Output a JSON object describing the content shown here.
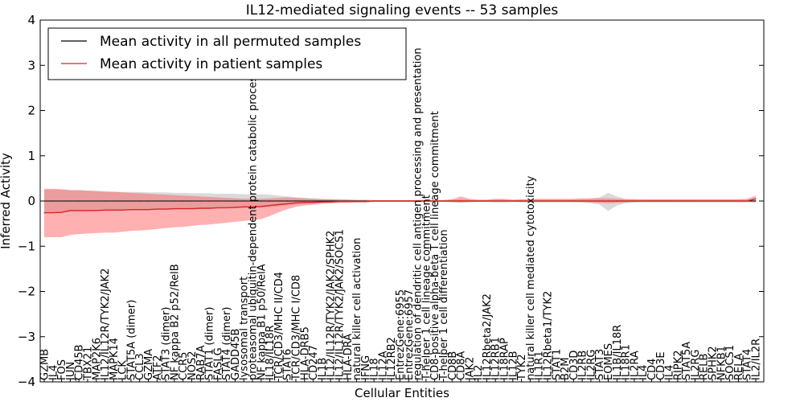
{
  "chart_data": {
    "type": "line",
    "title": "IL12-mediated signaling events -- 53 samples",
    "xlabel": "Cellular Entities",
    "ylabel": "Inferred Activity",
    "ylim": [
      -4,
      4
    ],
    "yticks": [
      -4,
      -3,
      -2,
      -1,
      0,
      1,
      2,
      3,
      4
    ],
    "categories": [
      "GZMB",
      "IL4",
      "FOS",
      "JUN",
      "CD45B",
      "TBX21",
      "MAP2K6",
      "IL12/IL12R/TYK2/JAK2",
      "MAPK14",
      "LCK",
      "STAT5A (dimer)",
      "CCL3",
      "GZMA",
      "ATF2",
      "STAT3 (dimer)",
      "NF kappa B2 p52/RelB",
      "CCR5",
      "NOS2",
      "RAB7A",
      "STAT1 (dimer)",
      "FASLG",
      "STAT4 (dimer)",
      "GADD45B",
      "lysosomal transport",
      "proteasomal ubiquitin-dependent protein catabolic process",
      "NF kappa B1 p50/RelA",
      "IL18/IL18R",
      "TCR/CD3/MHC II/CD4",
      "STAT6",
      "TCR/CD3/MHC I/CD8",
      "HLA-DRB5",
      "CD247",
      "IL1B",
      "IL12/IL12R/TYK2/JAK2/SPHK2",
      "IL12/IL12R/TYK2/JAK2/SOCS1",
      "HLA-DRA",
      "natural killer cell activation",
      "IFNG",
      "IL18",
      "IL12A",
      "IL12RB2",
      "EntrezGene:6955",
      "EntrezGene:6957",
      "regulation of dendritic cell antigen processing and presentation",
      "T-helper 1 cell lineage commitment",
      "CD8-positive alpha-beta T cell lineage commitment",
      "T-helper 1 cell differentiation",
      "CD8B",
      "CD8A",
      "JAK2",
      "IL2",
      "IL12Rbeta2/JAK2",
      "IL12RB1",
      "IL18RAP",
      "IL12B",
      "TYK2",
      "natural killer cell mediated cytotoxicity",
      "IL1R1",
      "IL12Rbeta1/TYK2",
      "STAT1",
      "B2M",
      "CD3D",
      "IL2RB",
      "IL2RG",
      "STAT3",
      "EOMES",
      "IL1B/IL18R",
      "IL18R1",
      "IL2RA",
      "IL4",
      "CD4",
      "CD3E",
      "IL4",
      "RIPK2",
      "STAT5A",
      "IL2RG",
      "RELB",
      "SPHK2",
      "NFKB1",
      "SOCS1",
      "RELA",
      "STAT4",
      "IL2/IL2R"
    ],
    "series": [
      {
        "name": "Mean activity in all permuted samples",
        "color": "#000000",
        "values": [
          0.0,
          0.0,
          0.0,
          0.0,
          0.0,
          0.0,
          0.0,
          0.0,
          0.0,
          0.0,
          0.0,
          0.0,
          0.0,
          0.0,
          0.0,
          0.0,
          0.0,
          0.0,
          0.0,
          0.0,
          0.0,
          0.0,
          0.0,
          0.0,
          0.0,
          0.0,
          0.0,
          0.0,
          0.0,
          0.0,
          0.0,
          0.0,
          0.0,
          0.0,
          0.0,
          0.0,
          0.0,
          0.0,
          0.0,
          0.0,
          0.0,
          0.0,
          0.0,
          0.0,
          0.0,
          0.0,
          0.0,
          0.0,
          0.0,
          0.0,
          0.0,
          0.0,
          0.0,
          0.0,
          0.0,
          0.0,
          0.0,
          0.0,
          0.0,
          0.0,
          0.0,
          0.0,
          0.0,
          0.0,
          0.0,
          0.0,
          0.0,
          0.0,
          0.0,
          0.0,
          0.0,
          0.0,
          0.0,
          0.0,
          0.0,
          0.0,
          0.0,
          0.0,
          0.0,
          0.0,
          0.0,
          0.0,
          0.0
        ],
        "lower": [
          -0.25,
          -0.25,
          -0.25,
          -0.24,
          -0.24,
          -0.23,
          -0.22,
          -0.21,
          -0.21,
          -0.2,
          -0.2,
          -0.2,
          -0.19,
          -0.19,
          -0.19,
          -0.18,
          -0.18,
          -0.17,
          -0.17,
          -0.17,
          -0.16,
          -0.16,
          -0.16,
          -0.15,
          -0.15,
          -0.15,
          -0.14,
          -0.12,
          -0.1,
          -0.08,
          -0.07,
          -0.06,
          -0.05,
          -0.04,
          -0.04,
          -0.03,
          -0.03,
          -0.03,
          -0.02,
          -0.02,
          -0.02,
          -0.02,
          -0.02,
          -0.02,
          -0.02,
          -0.02,
          -0.02,
          -0.03,
          -0.04,
          -0.03,
          -0.02,
          -0.02,
          -0.03,
          -0.03,
          -0.02,
          -0.03,
          -0.03,
          -0.03,
          -0.03,
          -0.03,
          -0.03,
          -0.03,
          -0.04,
          -0.05,
          -0.08,
          -0.22,
          -0.1,
          -0.05,
          -0.04,
          -0.03,
          -0.03,
          -0.03,
          -0.03,
          -0.03,
          -0.03,
          -0.03,
          -0.03,
          -0.03,
          -0.03,
          -0.03,
          -0.03,
          -0.03,
          -0.04
        ],
        "upper": [
          0.25,
          0.25,
          0.25,
          0.24,
          0.24,
          0.23,
          0.22,
          0.21,
          0.21,
          0.2,
          0.2,
          0.2,
          0.19,
          0.19,
          0.19,
          0.18,
          0.18,
          0.17,
          0.17,
          0.17,
          0.16,
          0.16,
          0.16,
          0.15,
          0.15,
          0.15,
          0.14,
          0.12,
          0.1,
          0.08,
          0.07,
          0.06,
          0.05,
          0.04,
          0.04,
          0.03,
          0.03,
          0.03,
          0.02,
          0.02,
          0.02,
          0.02,
          0.02,
          0.02,
          0.02,
          0.02,
          0.02,
          0.03,
          0.04,
          0.03,
          0.02,
          0.02,
          0.03,
          0.03,
          0.02,
          0.03,
          0.03,
          0.03,
          0.03,
          0.03,
          0.03,
          0.03,
          0.04,
          0.05,
          0.08,
          0.18,
          0.1,
          0.05,
          0.04,
          0.03,
          0.03,
          0.03,
          0.03,
          0.03,
          0.03,
          0.03,
          0.03,
          0.03,
          0.03,
          0.03,
          0.03,
          0.03,
          0.04
        ]
      },
      {
        "name": "Mean activity in patient samples",
        "color": "#d62728",
        "values": [
          -0.26,
          -0.26,
          -0.25,
          -0.21,
          -0.21,
          -0.21,
          -0.21,
          -0.2,
          -0.2,
          -0.2,
          -0.19,
          -0.19,
          -0.19,
          -0.18,
          -0.18,
          -0.17,
          -0.17,
          -0.17,
          -0.16,
          -0.16,
          -0.15,
          -0.15,
          -0.14,
          -0.13,
          -0.13,
          -0.12,
          -0.1,
          -0.08,
          -0.06,
          -0.04,
          -0.03,
          -0.03,
          -0.02,
          -0.02,
          -0.01,
          -0.01,
          -0.01,
          -0.01,
          0.0,
          0.0,
          0.0,
          0.0,
          0.0,
          0.0,
          0.0,
          0.0,
          0.0,
          0.0,
          0.0,
          0.0,
          0.0,
          0.0,
          0.0,
          0.0,
          0.0,
          0.0,
          0.0,
          0.0,
          0.0,
          0.0,
          0.0,
          0.0,
          0.0,
          0.0,
          0.0,
          0.0,
          0.0,
          0.0,
          0.0,
          0.0,
          0.0,
          0.0,
          0.0,
          0.0,
          0.0,
          0.0,
          0.0,
          0.0,
          0.0,
          0.0,
          0.0,
          0.0,
          0.05
        ],
        "lower": [
          -0.8,
          -0.8,
          -0.8,
          -0.75,
          -0.73,
          -0.72,
          -0.71,
          -0.7,
          -0.7,
          -0.68,
          -0.66,
          -0.65,
          -0.64,
          -0.62,
          -0.6,
          -0.58,
          -0.57,
          -0.55,
          -0.53,
          -0.52,
          -0.5,
          -0.48,
          -0.46,
          -0.44,
          -0.42,
          -0.4,
          -0.33,
          -0.25,
          -0.18,
          -0.13,
          -0.1,
          -0.08,
          -0.06,
          -0.05,
          -0.04,
          -0.04,
          -0.03,
          -0.03,
          -0.02,
          -0.02,
          -0.02,
          -0.02,
          -0.02,
          -0.02,
          -0.02,
          -0.02,
          -0.02,
          -0.02,
          -0.03,
          -0.02,
          -0.02,
          -0.02,
          -0.02,
          -0.02,
          -0.02,
          -0.02,
          -0.02,
          -0.02,
          -0.02,
          -0.02,
          -0.02,
          -0.02,
          -0.02,
          -0.03,
          -0.04,
          -0.05,
          -0.04,
          -0.03,
          -0.02,
          -0.02,
          -0.02,
          -0.02,
          -0.02,
          -0.02,
          -0.02,
          -0.02,
          -0.02,
          -0.02,
          -0.02,
          -0.02,
          -0.02,
          -0.02,
          -0.01
        ],
        "upper": [
          0.27,
          0.27,
          0.26,
          0.24,
          0.24,
          0.23,
          0.22,
          0.21,
          0.2,
          0.19,
          0.18,
          0.17,
          0.16,
          0.15,
          0.14,
          0.13,
          0.12,
          0.11,
          0.1,
          0.09,
          0.08,
          0.07,
          0.06,
          0.05,
          0.05,
          0.05,
          0.06,
          0.07,
          0.08,
          0.07,
          0.06,
          0.05,
          0.04,
          0.04,
          0.03,
          0.03,
          0.02,
          0.02,
          0.02,
          0.02,
          0.02,
          0.02,
          0.02,
          0.02,
          0.02,
          0.02,
          0.02,
          0.04,
          0.1,
          0.05,
          0.03,
          0.03,
          0.05,
          0.05,
          0.03,
          0.04,
          0.04,
          0.05,
          0.05,
          0.05,
          0.05,
          0.05,
          0.06,
          0.06,
          0.06,
          0.06,
          0.05,
          0.04,
          0.04,
          0.04,
          0.04,
          0.04,
          0.04,
          0.04,
          0.04,
          0.04,
          0.04,
          0.04,
          0.04,
          0.04,
          0.04,
          0.05,
          0.12
        ]
      }
    ],
    "legend": "top-left"
  }
}
